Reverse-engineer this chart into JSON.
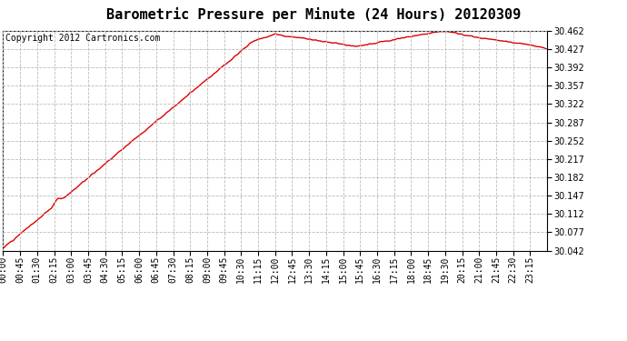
{
  "title": "Barometric Pressure per Minute (24 Hours) 20120309",
  "copyright": "Copyright 2012 Cartronics.com",
  "line_color": "#dd0000",
  "background_color": "#ffffff",
  "grid_color": "#bbbbbb",
  "ylim": [
    30.042,
    30.462
  ],
  "yticks": [
    30.042,
    30.077,
    30.112,
    30.147,
    30.182,
    30.217,
    30.252,
    30.287,
    30.322,
    30.357,
    30.392,
    30.427,
    30.462
  ],
  "xtick_labels": [
    "00:00",
    "00:45",
    "01:30",
    "02:15",
    "03:00",
    "03:45",
    "04:30",
    "05:15",
    "06:00",
    "06:45",
    "07:30",
    "08:15",
    "09:00",
    "09:45",
    "10:30",
    "11:15",
    "12:00",
    "12:45",
    "13:30",
    "14:15",
    "15:00",
    "15:45",
    "16:30",
    "17:15",
    "18:00",
    "18:45",
    "19:30",
    "20:15",
    "21:00",
    "21:45",
    "22:30",
    "23:15"
  ],
  "title_fontsize": 11,
  "tick_fontsize": 7,
  "copyright_fontsize": 7,
  "line_width": 1.0
}
